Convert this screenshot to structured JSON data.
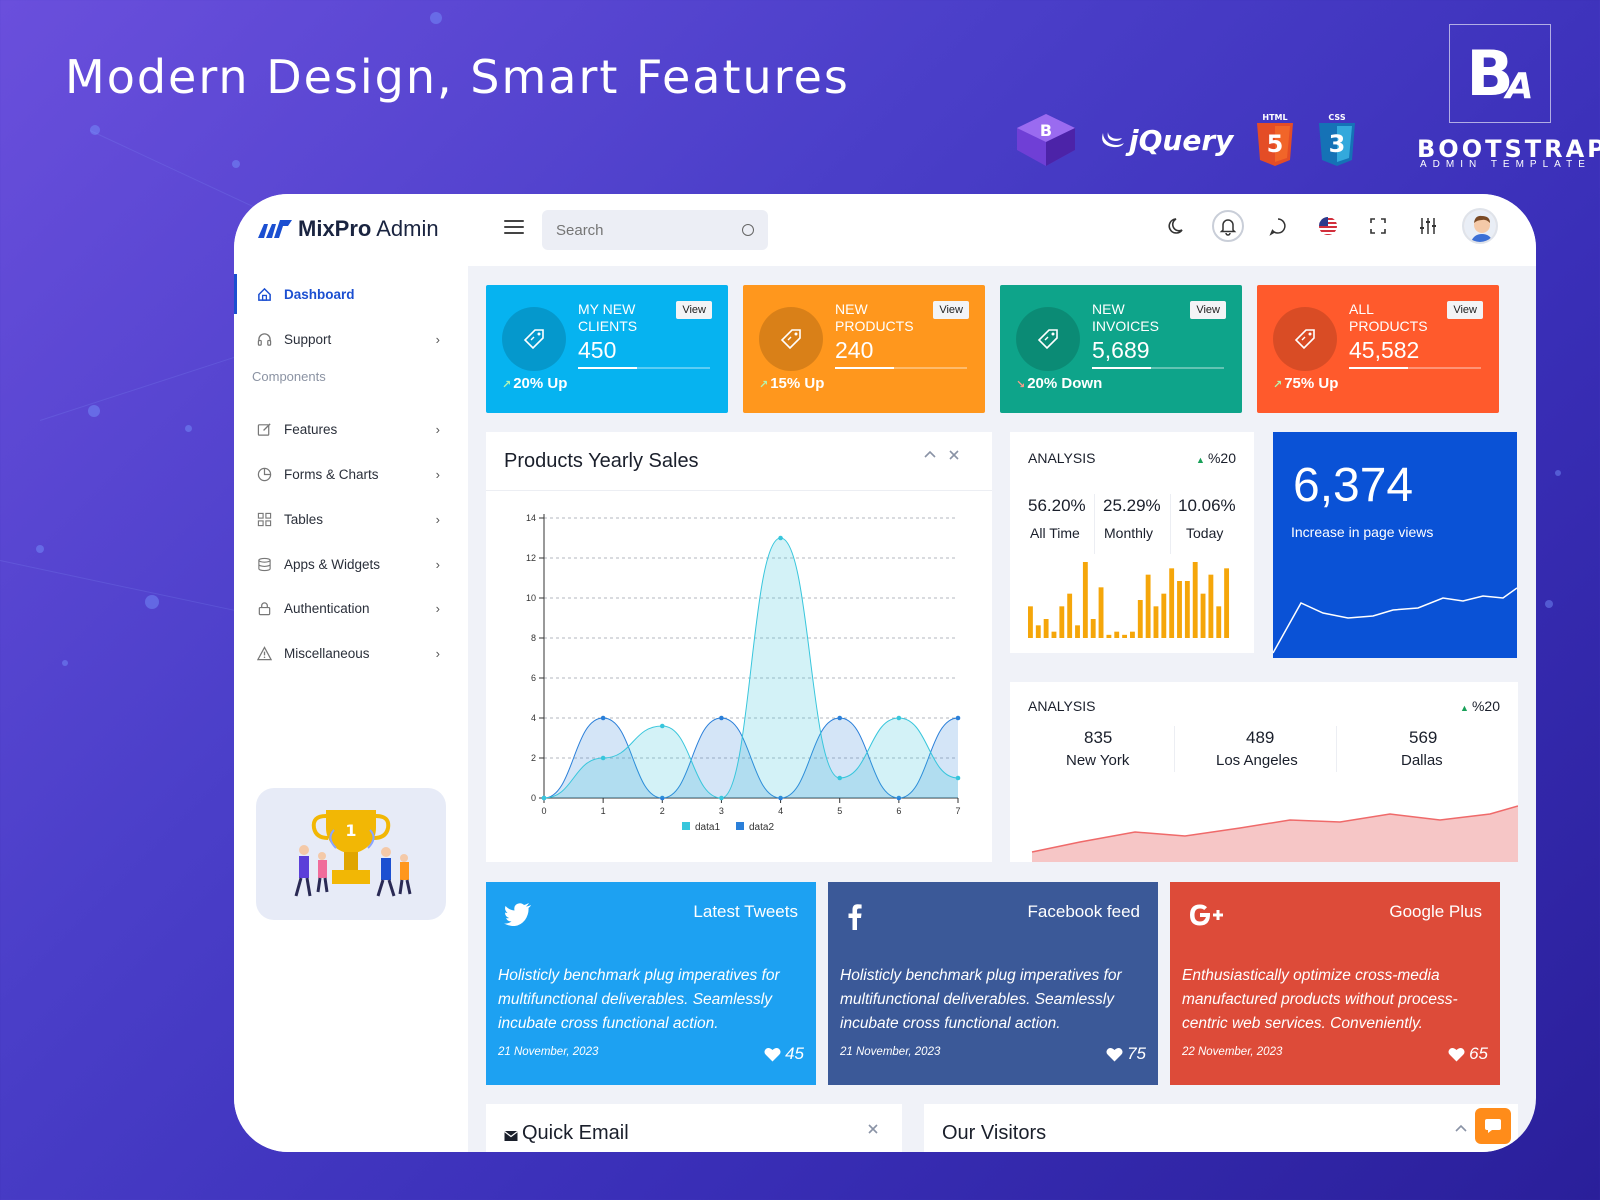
{
  "hero": {
    "title": "Modern Design, Smart Features"
  },
  "brand": {
    "monogram": "B",
    "monogram_sub": "A",
    "word": "BOOTSTRAP",
    "sub": "ADMIN TEMPLATE",
    "jquery": "jQuery",
    "html_label": "HTML",
    "html_num": "5",
    "css_label": "CSS",
    "css_num": "3",
    "bs_letter": "B"
  },
  "app": {
    "logo_bold": "MixPro",
    "logo_light": " Admin",
    "search_placeholder": "Search",
    "sidebar": {
      "items": [
        {
          "label": "Dashboard"
        },
        {
          "label": "Support"
        },
        {
          "label": "Features"
        },
        {
          "label": "Forms & Charts"
        },
        {
          "label": "Tables"
        },
        {
          "label": "Apps & Widgets"
        },
        {
          "label": "Authentication"
        },
        {
          "label": "Miscellaneous"
        }
      ],
      "group": "Components",
      "trophy_rank": "1"
    },
    "stats": [
      {
        "label": "MY NEW CLIENTS",
        "value": "450",
        "trend": "20% Up",
        "view": "View",
        "color": "#06b3f0"
      },
      {
        "label": "NEW PRODUCTS",
        "value": "240",
        "trend": "15% Up",
        "view": "View",
        "color": "#ff971d"
      },
      {
        "label": "NEW INVOICES",
        "value": "5,689",
        "trend": "20% Down",
        "view": "View",
        "color": "#0ea48a"
      },
      {
        "label": "ALL PRODUCTS",
        "value": "45,582",
        "trend": "75% Up",
        "view": "View",
        "color": "#ff5a2c"
      }
    ],
    "sales": {
      "title": "Products Yearly Sales"
    },
    "analysis1": {
      "title": "ANALYSIS",
      "pct": "%20",
      "cols": [
        {
          "value": "56.20%",
          "label": "All Time"
        },
        {
          "value": "25.29%",
          "label": "Monthly"
        },
        {
          "value": "10.06%",
          "label": "Today"
        }
      ],
      "bars": [
        5,
        2,
        3,
        1,
        5,
        7,
        2,
        12,
        3,
        8,
        0.5,
        1,
        0.5,
        1,
        6,
        10,
        5,
        7,
        11,
        9,
        9,
        12,
        7,
        10,
        5,
        11
      ]
    },
    "pageviews": {
      "value": "6,374",
      "label": "Increase in page views"
    },
    "analysis2": {
      "title": "ANALYSIS",
      "pct": "%20",
      "cols": [
        {
          "value": "835",
          "label": "New York"
        },
        {
          "value": "489",
          "label": "Los Angeles"
        },
        {
          "value": "569",
          "label": "Dallas"
        }
      ]
    },
    "social": [
      {
        "title": "Latest Tweets",
        "text": "Holisticly benchmark plug imperatives for multifunctional deliverables. Seamlessly incubate cross functional action.",
        "date": "21 November, 2023",
        "likes": "45",
        "color": "#1da1f2"
      },
      {
        "title": "Facebook feed",
        "text": "Holisticly benchmark plug imperatives for multifunctional deliverables. Seamlessly incubate cross functional action.",
        "date": "21 November, 2023",
        "likes": "75",
        "color": "#3b5998"
      },
      {
        "title": "Google Plus",
        "text": "Enthusiastically optimize cross-media manufactured products without process-centric web services. Conveniently.",
        "date": "22 November, 2023",
        "likes": "65",
        "color": "#dd4b39"
      }
    ],
    "quick_email": {
      "title": "Quick Email"
    },
    "visitors": {
      "title": "Our Visitors"
    }
  },
  "chart_data": {
    "type": "area",
    "x": [
      0,
      1,
      2,
      3,
      4,
      5,
      6,
      7
    ],
    "ylim": [
      0,
      14
    ],
    "yticks": [
      0,
      2,
      4,
      6,
      8,
      10,
      12,
      14
    ],
    "series": [
      {
        "name": "data1",
        "values": [
          0,
          2,
          3.6,
          0,
          13,
          1,
          4,
          1
        ],
        "color": "#38c6dc"
      },
      {
        "name": "data2",
        "values": [
          0,
          4,
          0,
          4,
          0,
          4,
          0,
          4
        ],
        "color": "#2a7fd9"
      }
    ],
    "legend": "bottom"
  }
}
